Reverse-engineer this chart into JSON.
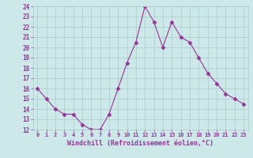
{
  "x": [
    0,
    1,
    2,
    3,
    4,
    5,
    6,
    7,
    8,
    9,
    10,
    11,
    12,
    13,
    14,
    15,
    16,
    17,
    18,
    19,
    20,
    21,
    22,
    23
  ],
  "y": [
    16,
    15,
    14,
    13.5,
    13.5,
    12.5,
    12,
    12,
    13.5,
    16,
    18.5,
    20.5,
    24,
    22.5,
    20,
    22.5,
    21,
    20.5,
    19,
    17.5,
    16.5,
    15.5,
    15,
    14.5
  ],
  "line_color": "#993399",
  "marker": "D",
  "marker_size": 2.5,
  "bg_color": "#cce8e8",
  "grid_color": "#aacccc",
  "xlabel": "Windchill (Refroidissement éolien,°C)",
  "xlabel_color": "#993399",
  "tick_color": "#993399",
  "ylim": [
    12,
    24
  ],
  "xlim": [
    -0.5,
    23.5
  ],
  "yticks": [
    12,
    13,
    14,
    15,
    16,
    17,
    18,
    19,
    20,
    21,
    22,
    23,
    24
  ],
  "xticks": [
    0,
    1,
    2,
    3,
    4,
    5,
    6,
    7,
    8,
    9,
    10,
    11,
    12,
    13,
    14,
    15,
    16,
    17,
    18,
    19,
    20,
    21,
    22,
    23
  ]
}
